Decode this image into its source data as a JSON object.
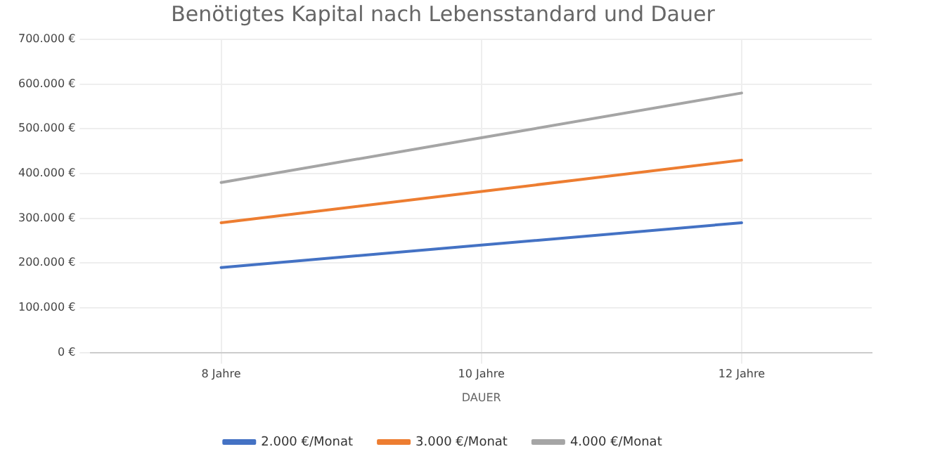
{
  "chart_data": {
    "type": "line",
    "title": "Benötigtes Kapital nach Lebensstandard und Dauer",
    "xlabel": "DAUER",
    "categories": [
      "8 Jahre",
      "10 Jahre",
      "12 Jahre"
    ],
    "series": [
      {
        "name": "2.000 €/Monat",
        "color": "#4472c4",
        "values": [
          190000,
          240000,
          290000
        ]
      },
      {
        "name": "3.000 €/Monat",
        "color": "#ed7d31",
        "values": [
          290000,
          360000,
          430000
        ]
      },
      {
        "name": "4.000 €/Monat",
        "color": "#a5a5a5",
        "values": [
          380000,
          480000,
          580000
        ]
      }
    ],
    "ylim": [
      0,
      700000
    ],
    "yticks": [
      {
        "value": 0,
        "label": "0 €"
      },
      {
        "value": 100000,
        "label": "100.000 €"
      },
      {
        "value": 200000,
        "label": "200.000 €"
      },
      {
        "value": 300000,
        "label": "300.000 €"
      },
      {
        "value": 400000,
        "label": "400.000 €"
      },
      {
        "value": 500000,
        "label": "500.000 €"
      },
      {
        "value": 600000,
        "label": "600.000 €"
      },
      {
        "value": 700000,
        "label": "700.000 €"
      }
    ],
    "grid": true,
    "legend": "bottom",
    "marker": "none",
    "line_style": "solid"
  }
}
